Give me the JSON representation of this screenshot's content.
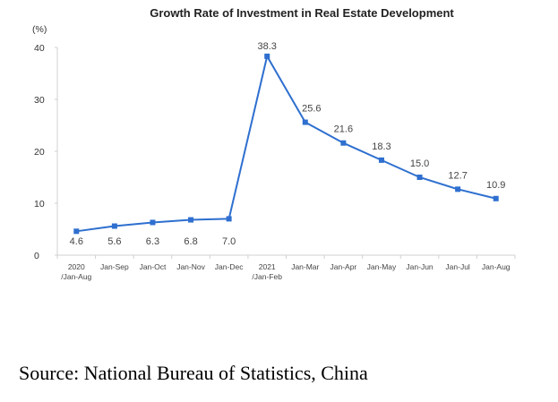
{
  "chart_data": {
    "type": "line",
    "title": "Growth Rate of Investment in Real Estate Development",
    "ylabel": "(%)",
    "xlabel": "",
    "ylim": [
      0,
      40
    ],
    "yticks": [
      0,
      10,
      20,
      30,
      40
    ],
    "grid": false,
    "categories": [
      [
        "2020",
        "/Jan-Aug"
      ],
      [
        "Jan-Sep"
      ],
      [
        "Jan-Oct"
      ],
      [
        "Jan-Nov"
      ],
      [
        "Jan-Dec"
      ],
      [
        "2021",
        "/Jan-Feb"
      ],
      [
        "Jan-Mar"
      ],
      [
        "Jan-Apr"
      ],
      [
        "Jan-May"
      ],
      [
        "Jan-Jun"
      ],
      [
        "Jan-Jul"
      ],
      [
        "Jan-Aug"
      ]
    ],
    "series": [
      {
        "name": "Growth Rate",
        "color": "#2e6fcf",
        "values": [
          4.6,
          5.6,
          6.3,
          6.8,
          7.0,
          38.3,
          25.6,
          21.6,
          18.3,
          15.0,
          12.7,
          10.9
        ],
        "labels": [
          "4.6",
          "5.6",
          "6.3",
          "6.8",
          "7.0",
          "38.3",
          "25.6",
          "21.6",
          "18.3",
          "15.0",
          "12.7",
          "10.9"
        ]
      }
    ]
  },
  "source": "Source: National Bureau of Statistics, China"
}
